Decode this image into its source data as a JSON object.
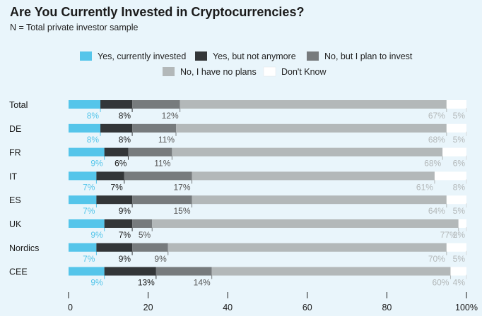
{
  "title": "Are You Currently Invested in Cryptocurrencies?",
  "subtitle": "N = Total private investor sample",
  "chart_data": {
    "type": "bar",
    "orientation": "horizontal",
    "stacked": true,
    "categories": [
      "Total",
      "DE",
      "FR",
      "IT",
      "ES",
      "UK",
      "Nordics",
      "CEE"
    ],
    "series": [
      {
        "name": "Yes, currently invested",
        "color": "#55c5ea",
        "label_color": "#55c5ea",
        "values": [
          8,
          8,
          9,
          7,
          7,
          9,
          7,
          9
        ]
      },
      {
        "name": "Yes, but not anymore",
        "color": "#333638",
        "label_color": "#1a1a1a",
        "values": [
          8,
          8,
          6,
          7,
          9,
          7,
          9,
          13
        ]
      },
      {
        "name": "No, but I plan to invest",
        "color": "#777b7d",
        "label_color": "#555555",
        "values": [
          12,
          11,
          11,
          17,
          15,
          5,
          9,
          14
        ]
      },
      {
        "name": "No, I have no plans",
        "color": "#b3b8b9",
        "label_color": "#b3b8b9",
        "values": [
          67,
          68,
          68,
          61,
          64,
          77,
          70,
          60
        ]
      },
      {
        "name": "Don't Know",
        "color": "#ffffff",
        "label_color": "#b3b8b9",
        "values": [
          5,
          5,
          6,
          8,
          5,
          2,
          5,
          4
        ]
      }
    ],
    "label_suffix": "%",
    "xlim": [
      0,
      100
    ],
    "xticks": [
      "0",
      "20",
      "40",
      "60",
      "80",
      "100%"
    ],
    "legend_position": "top"
  }
}
